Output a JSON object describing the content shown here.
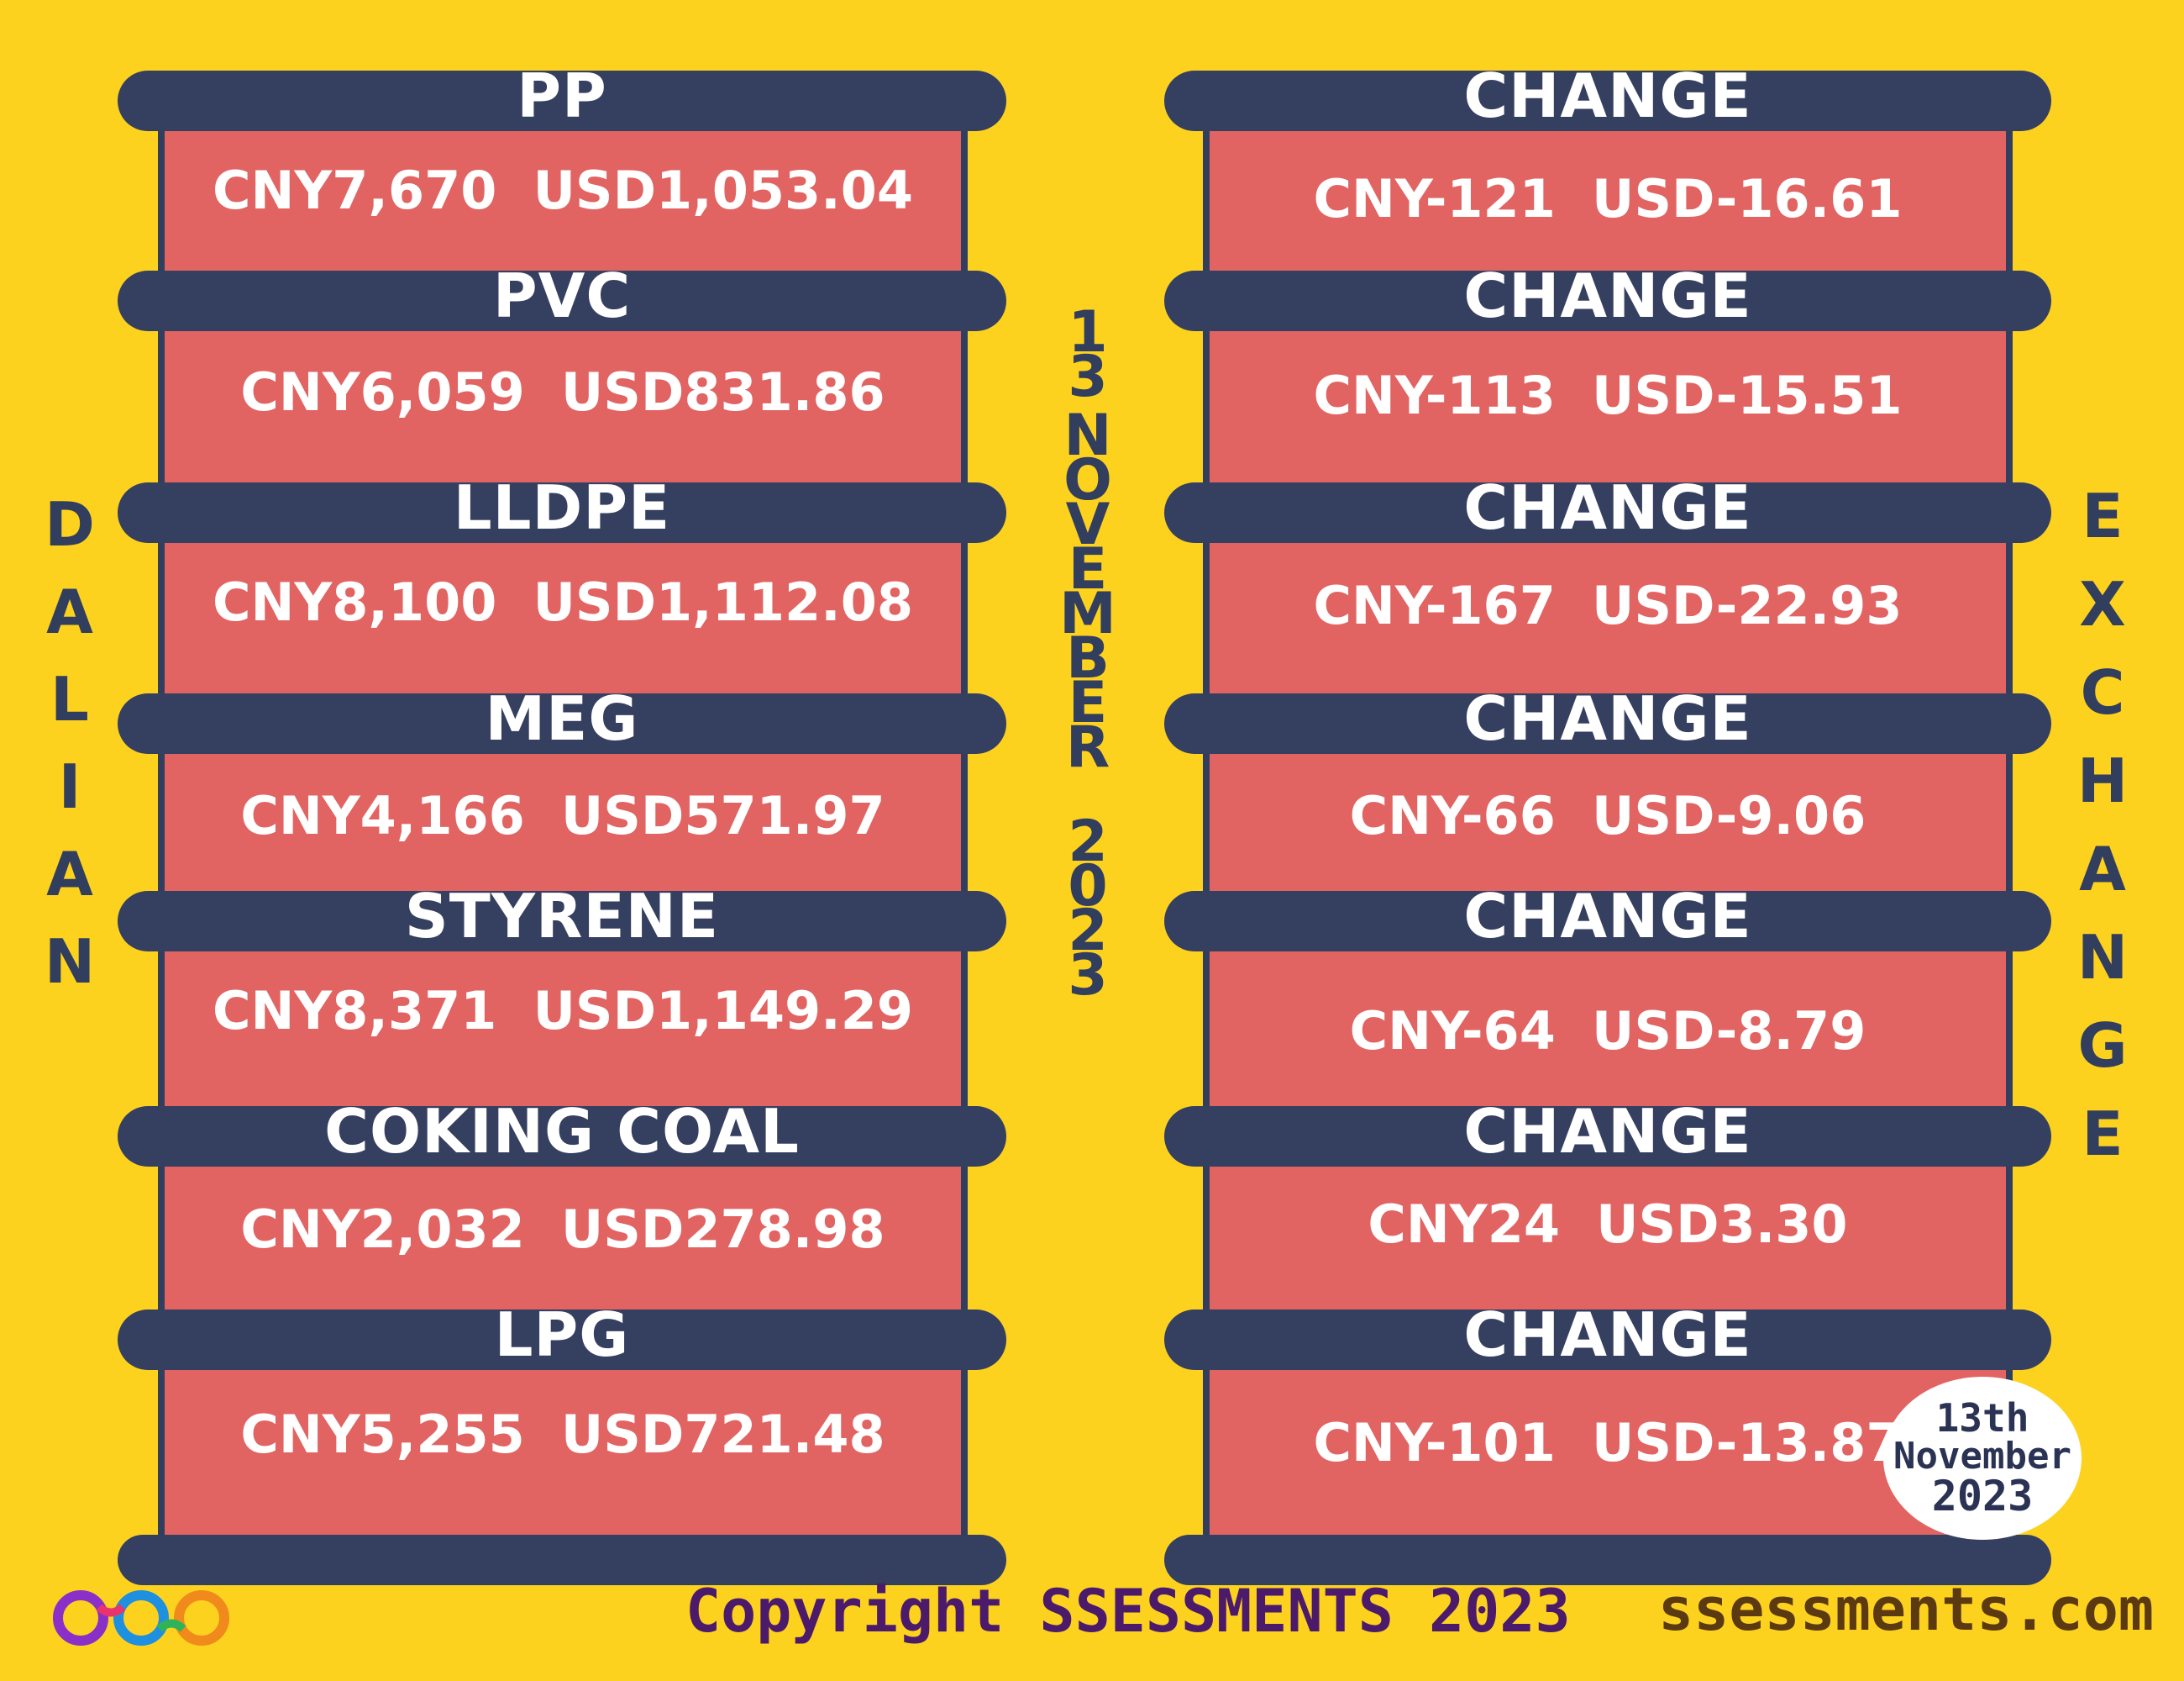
{
  "exchange_name": {
    "letters": [
      "D",
      "A",
      "L",
      "I",
      "A",
      "N"
    ]
  },
  "exchange_word": {
    "letters": [
      "E",
      "X",
      "C",
      "H",
      "A",
      "N",
      "G",
      "E"
    ]
  },
  "date_vertical": {
    "day": [
      "1",
      "3"
    ],
    "month": [
      "N",
      "O",
      "V",
      "E",
      "M",
      "B",
      "E",
      "R"
    ],
    "year": [
      "2",
      "0",
      "2",
      "3"
    ]
  },
  "products": [
    {
      "name": "PP",
      "price": "CNY7,670  USD1,053.04",
      "change_label": "CHANGE",
      "change": "CNY-121  USD-16.61"
    },
    {
      "name": "PVC",
      "price": "CNY6,059  USD831.86",
      "change_label": "CHANGE",
      "change": "CNY-113  USD-15.51"
    },
    {
      "name": "LLDPE",
      "price": "CNY8,100  USD1,112.08",
      "change_label": "CHANGE",
      "change": "CNY-167  USD-22.93"
    },
    {
      "name": "MEG",
      "price": "CNY4,166  USD571.97",
      "change_label": "CHANGE",
      "change": "CNY-66  USD-9.06"
    },
    {
      "name": "STYRENE",
      "price": "CNY8,371  USD1,149.29",
      "change_label": "CHANGE",
      "change": "CNY-64  USD-8.79"
    },
    {
      "name": "COKING COAL",
      "price": "CNY2,032  USD278.98",
      "change_label": "CHANGE",
      "change": "CNY24  USD3.30"
    },
    {
      "name": "LPG",
      "price": "CNY5,255  USD721.48",
      "change_label": "CHANGE",
      "change": "CNY-101  USD-13.87"
    }
  ],
  "date_badge": {
    "line1": "13th",
    "line2": "November",
    "line3": "2023"
  },
  "footer": {
    "copyright": "Copyright SSESSMENTS 2023",
    "website": "ssessments.com"
  },
  "colors": {
    "background": "#fdd21f",
    "bar": "#353f60",
    "cell": "#e16462",
    "text": "#ffffff",
    "accent_text": "#323e5e"
  }
}
